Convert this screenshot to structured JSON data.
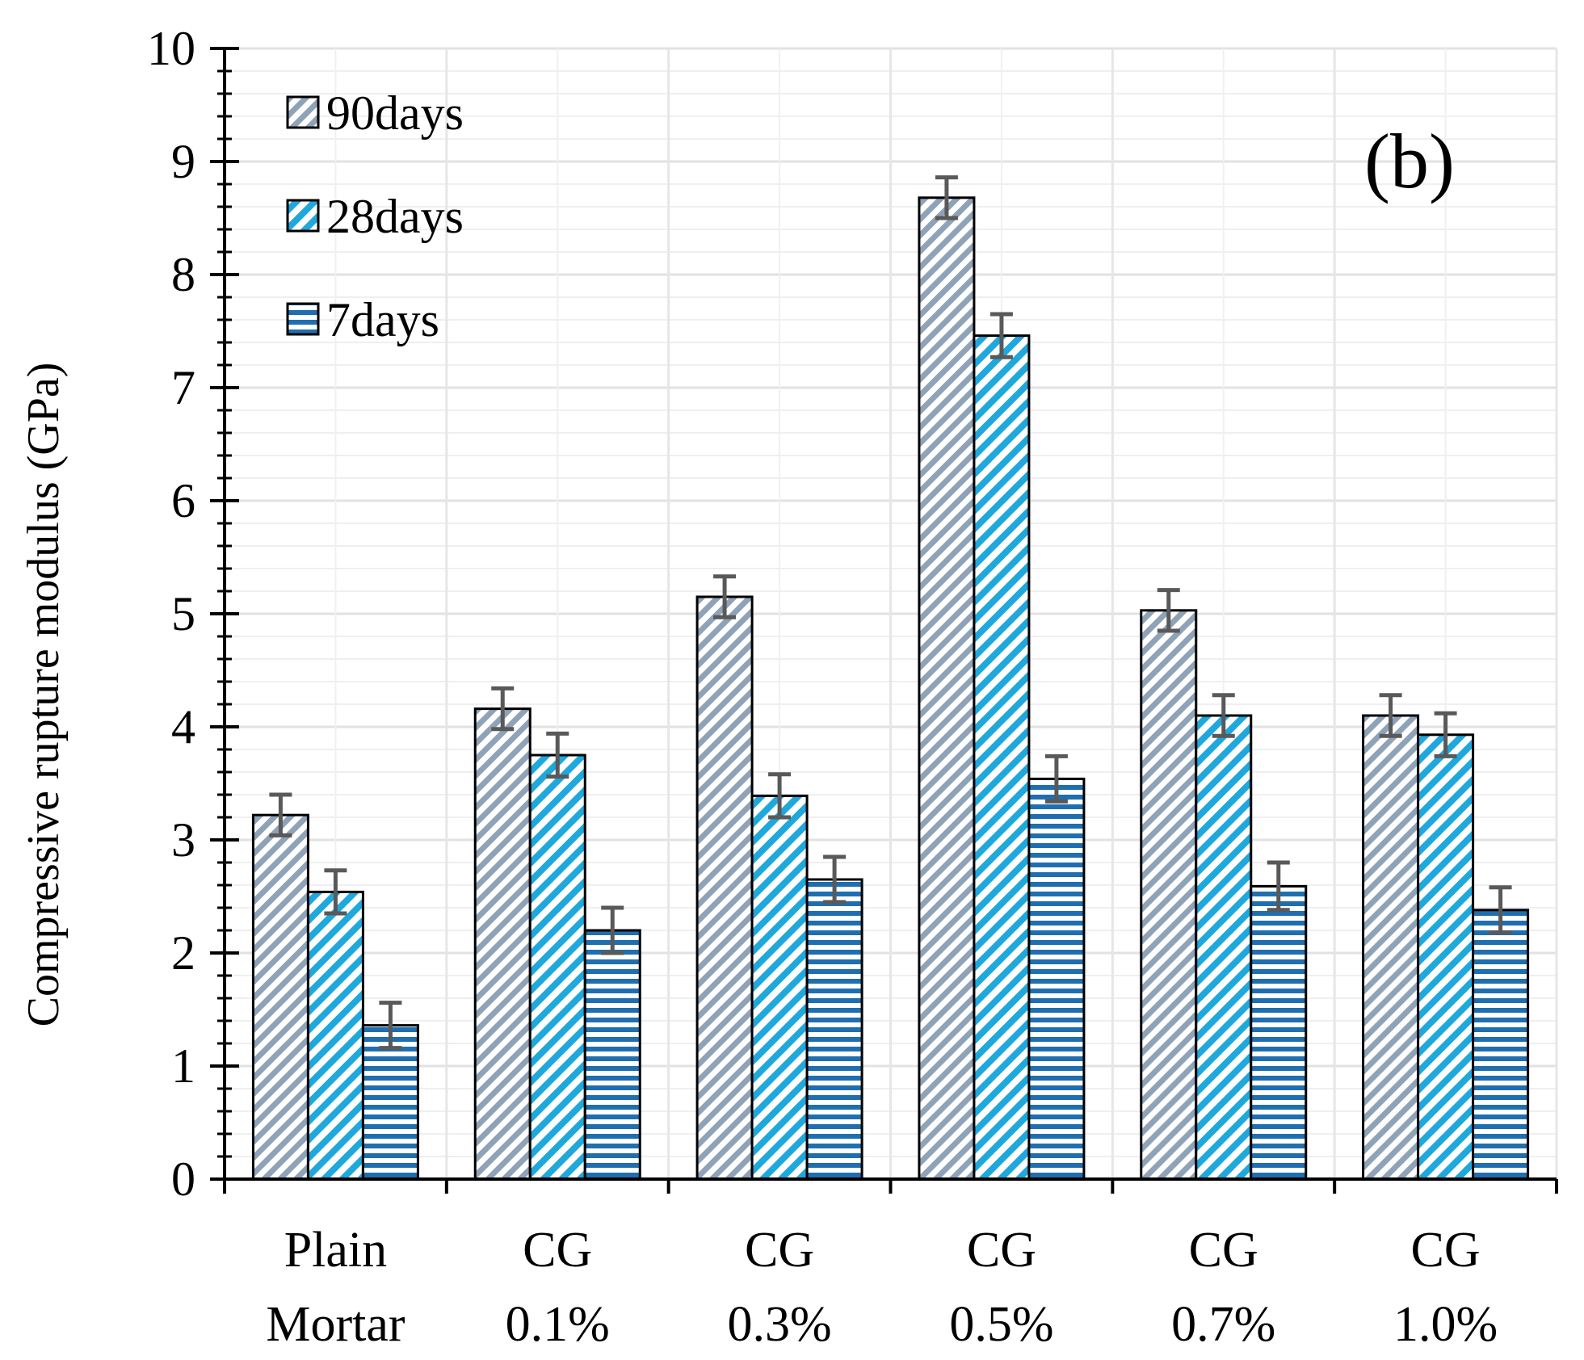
{
  "chart_data": {
    "type": "bar",
    "panel_label": "(b)",
    "ylabel": "Compressive rupture modulus (GPa)",
    "xlabel": "",
    "ylim": [
      0,
      10
    ],
    "yticks": [
      "0",
      "1",
      "2",
      "3",
      "4",
      "5",
      "6",
      "7",
      "8",
      "9",
      "10"
    ],
    "categories": [
      [
        "Plain",
        "Mortar"
      ],
      [
        "CG",
        "0.1%"
      ],
      [
        "CG",
        "0.3%"
      ],
      [
        "CG",
        "0.5%"
      ],
      [
        "CG",
        "0.7%"
      ],
      [
        "CG",
        "1.0%"
      ]
    ],
    "legend_position": "top-left",
    "series": [
      {
        "name": "90days",
        "pattern": "diagonal-grey",
        "color": "#8fa3b8",
        "values": [
          3.22,
          4.16,
          5.15,
          8.68,
          5.03,
          4.1
        ],
        "errors": [
          0.18,
          0.18,
          0.18,
          0.18,
          0.18,
          0.18
        ]
      },
      {
        "name": "28days",
        "pattern": "zigzag-blue",
        "color": "#1fa8dc",
        "values": [
          2.54,
          3.75,
          3.39,
          7.46,
          4.1,
          3.93
        ],
        "errors": [
          0.19,
          0.19,
          0.19,
          0.19,
          0.18,
          0.19
        ]
      },
      {
        "name": "7days",
        "pattern": "horizontal-blue",
        "color": "#1f6fb0",
        "values": [
          1.36,
          2.2,
          2.65,
          3.54,
          2.59,
          2.38
        ],
        "errors": [
          0.2,
          0.2,
          0.2,
          0.2,
          0.21,
          0.2
        ]
      }
    ]
  }
}
